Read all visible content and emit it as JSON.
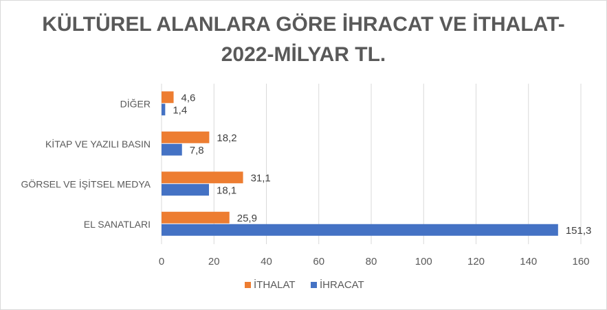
{
  "chart_data": {
    "type": "bar",
    "orientation": "horizontal",
    "title_lines": [
      "KÜLTÜREL ALANLARA GÖRE İHRACAT VE İTHALAT-",
      "2022-MİLYAR TL."
    ],
    "categories": [
      "EL SANATLARI",
      "GÖRSEL VE İŞİTSEL MEDYA",
      "KİTAP VE YAZILI BASIN",
      "DİĞER"
    ],
    "series": [
      {
        "name": "İHRACAT",
        "color": "#4472c4",
        "values": [
          151.3,
          18.1,
          7.8,
          1.4
        ],
        "labels": [
          "151,3",
          "18,1",
          "7,8",
          "1,4"
        ]
      },
      {
        "name": "İTHALAT",
        "color": "#ed7d31",
        "values": [
          25.9,
          31.1,
          18.2,
          4.6
        ],
        "labels": [
          "25,9",
          "31,1",
          "18,2",
          "4,6"
        ]
      }
    ],
    "xlim": [
      0,
      160
    ],
    "xticks": [
      0,
      20,
      40,
      60,
      80,
      100,
      120,
      140,
      160
    ],
    "xtick_labels": [
      "0",
      "20",
      "40",
      "60",
      "80",
      "100",
      "120",
      "140",
      "160"
    ],
    "grid": true,
    "legend_position": "bottom",
    "legend_order": [
      "İTHALAT",
      "İHRACAT"
    ]
  }
}
